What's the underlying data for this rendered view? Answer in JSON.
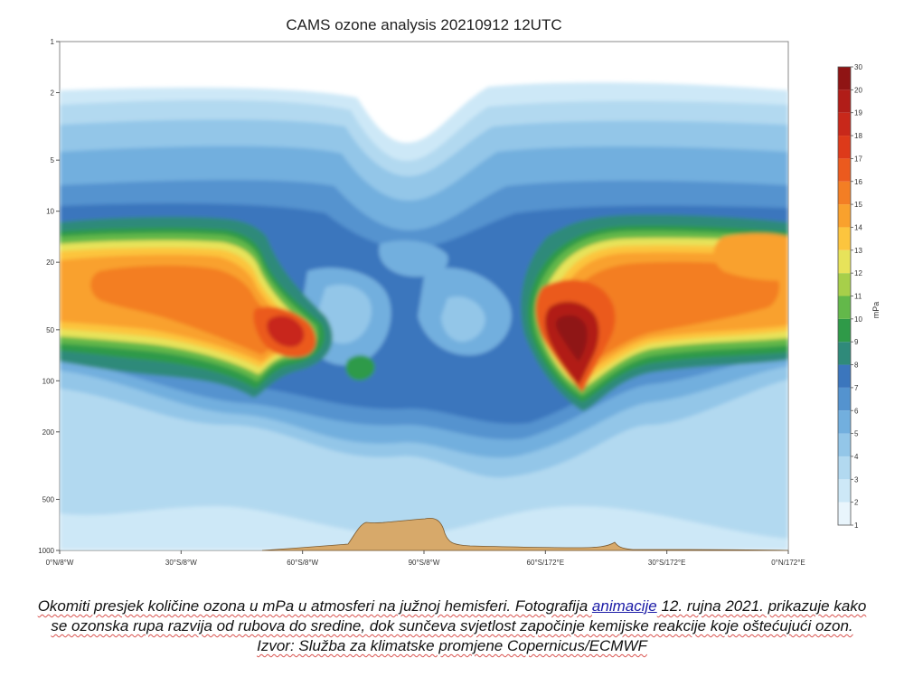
{
  "chart_data": {
    "type": "heatmap",
    "title": "CAMS ozone analysis 20210912 12UTC",
    "y_axis": {
      "scale": "log",
      "reversed": true,
      "range": [
        1,
        1000
      ],
      "ticks": [
        "1",
        "2",
        "5",
        "10",
        "20",
        "50",
        "100",
        "200",
        "500",
        "1000"
      ]
    },
    "x_axis": {
      "ticks": [
        "0°N/8°W",
        "30°S/8°W",
        "60°S/8°W",
        "90°S/8°W",
        "60°S/172°E",
        "30°S/172°E",
        "0°N/172°E"
      ]
    },
    "colorbar": {
      "unit_label": "mPa",
      "levels": [
        "1",
        "2",
        "3",
        "4",
        "5",
        "6",
        "7",
        "8",
        "9",
        "10",
        "11",
        "12",
        "13",
        "14",
        "15",
        "16",
        "17",
        "18",
        "19",
        "20",
        "30"
      ],
      "colors": [
        "#e9f5fc",
        "#cde8f7",
        "#b2d9f0",
        "#93c6e8",
        "#72afde",
        "#5493cf",
        "#3b76bd",
        "#2f8a7a",
        "#2f9a48",
        "#63b84a",
        "#a7cf4a",
        "#e7e35a",
        "#fcc53e",
        "#f9a12d",
        "#f37e24",
        "#eb5a1e",
        "#dd3a1a",
        "#c8281a",
        "#b11d18",
        "#8f1414"
      ]
    },
    "fill_color": "#d7a96a"
  },
  "caption": {
    "s1": "Okomiti presjek količine ozona u mPa u atmosferi na južnoj hemisferi. Fotografija ",
    "link": "animacije",
    "s2": " 12. rujna 2021. prikazuje kako se ozonska rupa razvija od rubova do sredine, dok sunčeva svjetlost započinje kemijske reakcije koje oštećujući ozon. Izvor: Služba za klimatske promjene Copernicus/ECMWF"
  }
}
